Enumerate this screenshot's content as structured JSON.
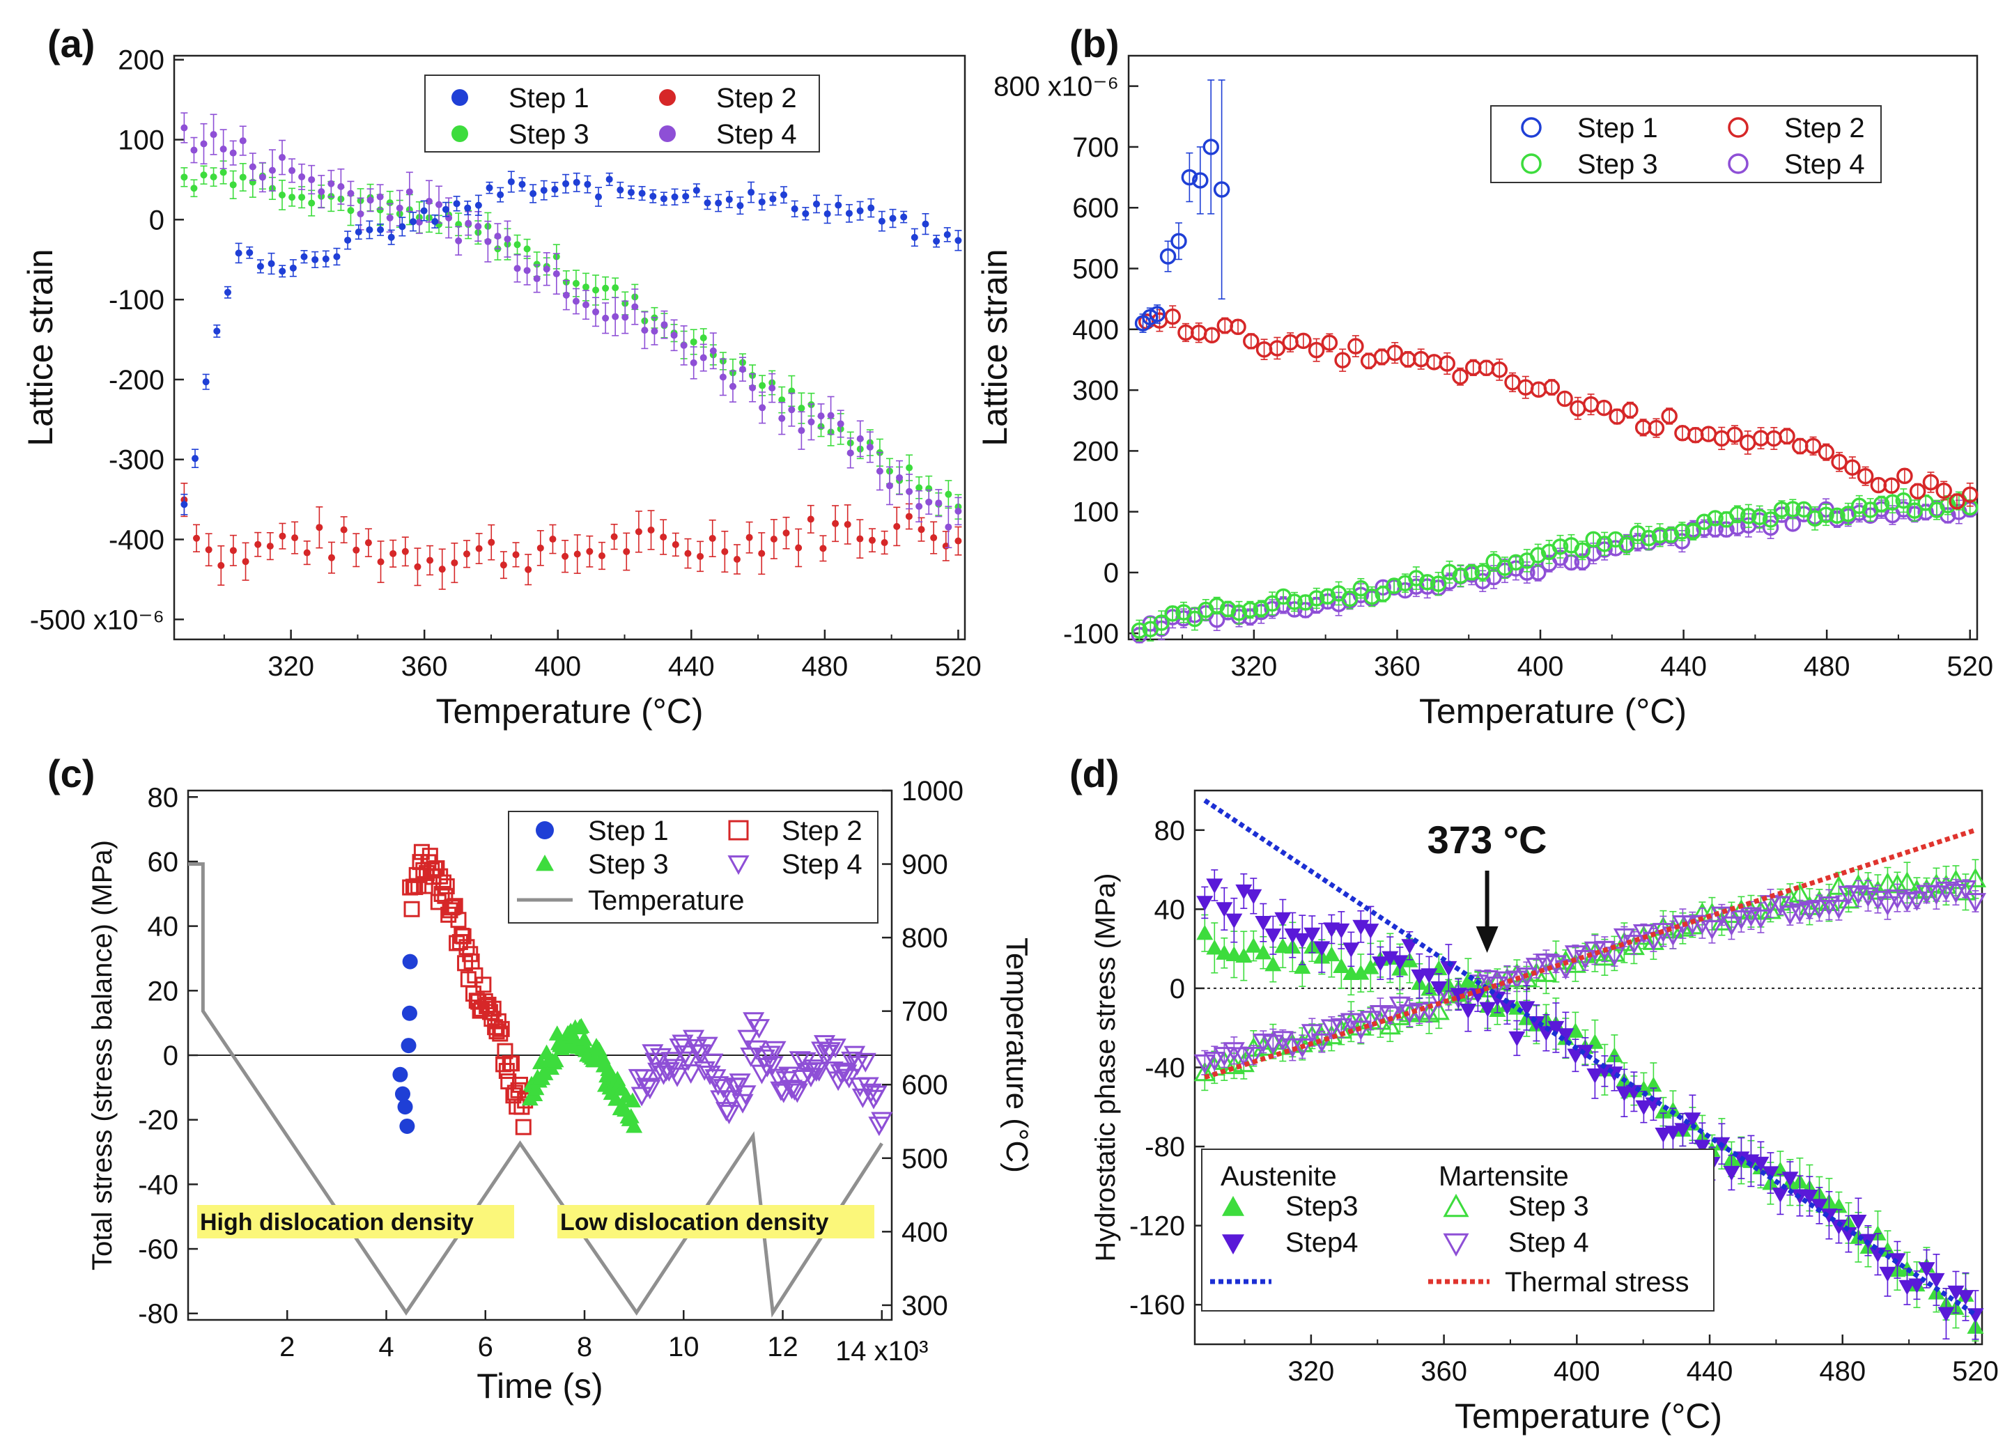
{
  "colors": {
    "blue": "#1f3fd6",
    "red": "#d62728",
    "green": "#3ddc3d",
    "purple": "#8e4fd6",
    "gray": "#8f8f8f",
    "highlight": "#fbf77a",
    "dark_purple": "#5a19d8",
    "dash_blue": "#1c2fd4",
    "dash_red": "#e0342e"
  },
  "chart_data": [
    {
      "panel": "(a)",
      "type": "scatter",
      "xlabel": "Temperature (°C)",
      "ylabel": "Lattice strain",
      "xlim": [
        285,
        522
      ],
      "ylim": [
        -525,
        205
      ],
      "xticks": [
        320,
        360,
        400,
        440,
        480,
        520
      ],
      "xtick_labels": [
        "320",
        "360",
        "400",
        "440",
        "480",
        "520"
      ],
      "yticks": [
        200,
        100,
        0,
        -100,
        -200,
        -300,
        -400,
        -500
      ],
      "ytick_labels": [
        "200",
        "100",
        "0",
        "-100",
        "-200",
        "-300",
        "-400",
        "-500 x10⁻⁶"
      ],
      "legend": [
        {
          "label": "Step 1",
          "color": "blue",
          "marker": "filled-circle"
        },
        {
          "label": "Step 2",
          "color": "red",
          "marker": "filled-circle"
        },
        {
          "label": "Step 3",
          "color": "green",
          "marker": "filled-circle"
        },
        {
          "label": "Step 4",
          "color": "purple",
          "marker": "filled-circle"
        }
      ],
      "series": [
        {
          "name": "Step 1",
          "color": "blue",
          "marker": "filled-circle",
          "error": 10,
          "x": [
            288,
            291,
            294,
            297,
            300,
            303,
            306,
            309,
            314,
            320,
            330,
            345,
            360,
            375,
            385,
            395,
            410,
            430,
            450,
            470,
            490,
            505,
            520
          ],
          "y": [
            -350,
            -300,
            -215,
            -165,
            -100,
            -50,
            -45,
            -45,
            -50,
            -55,
            -40,
            -20,
            0,
            20,
            40,
            35,
            40,
            35,
            30,
            20,
            10,
            -10,
            -30
          ]
        },
        {
          "name": "Step 2",
          "color": "red",
          "marker": "filled-circle",
          "error": 20,
          "x": [
            288,
            295,
            305,
            320,
            340,
            360,
            380,
            400,
            420,
            440,
            460,
            480,
            500,
            520
          ],
          "y": [
            -350,
            -410,
            -420,
            -400,
            -410,
            -420,
            -415,
            -420,
            -405,
            -410,
            -400,
            -390,
            -385,
            -390
          ]
        },
        {
          "name": "Step 3",
          "color": "green",
          "marker": "filled-circle",
          "error": 15,
          "x": [
            288,
            300,
            320,
            340,
            360,
            380,
            400,
            420,
            440,
            460,
            480,
            500,
            520
          ],
          "y": [
            45,
            60,
            40,
            20,
            0,
            -20,
            -60,
            -100,
            -150,
            -200,
            -250,
            -310,
            -360
          ]
        },
        {
          "name": "Step 4",
          "color": "purple",
          "marker": "filled-circle",
          "error": 20,
          "x": [
            288,
            300,
            320,
            340,
            360,
            380,
            400,
            420,
            440,
            460,
            480,
            500,
            520
          ],
          "y": [
            110,
            90,
            60,
            30,
            10,
            -20,
            -70,
            -120,
            -160,
            -210,
            -260,
            -320,
            -370
          ]
        }
      ]
    },
    {
      "panel": "(b)",
      "type": "scatter",
      "xlabel": "Temperature (°C)",
      "ylabel": "Lattice strain",
      "xlim": [
        285,
        522
      ],
      "ylim": [
        -110,
        850
      ],
      "xticks": [
        320,
        360,
        400,
        440,
        480,
        520
      ],
      "xtick_labels": [
        "320",
        "360",
        "400",
        "440",
        "480",
        "520"
      ],
      "yticks": [
        -100,
        0,
        100,
        200,
        300,
        400,
        500,
        600,
        700,
        800
      ],
      "ytick_labels": [
        "-100",
        "0",
        "100",
        "200",
        "300",
        "400",
        "500",
        "600",
        "700",
        "800 x10⁻⁶"
      ],
      "legend": [
        {
          "label": "Step 1",
          "color": "blue",
          "marker": "open-circle"
        },
        {
          "label": "Step 2",
          "color": "red",
          "marker": "open-circle"
        },
        {
          "label": "Step 3",
          "color": "green",
          "marker": "open-circle"
        },
        {
          "label": "Step 4",
          "color": "purple",
          "marker": "open-circle"
        }
      ],
      "series": [
        {
          "name": "Step 1",
          "color": "blue",
          "marker": "open-circle",
          "error": [
            15,
            15,
            15,
            25,
            30,
            40,
            55,
            110,
            180
          ],
          "x": [
            289,
            291,
            293,
            296,
            299,
            302,
            305,
            308,
            311
          ],
          "y": [
            410,
            420,
            425,
            520,
            545,
            650,
            645,
            700,
            630
          ]
        },
        {
          "name": "Step 2",
          "color": "red",
          "marker": "open-circle",
          "error": 15,
          "x": [
            290,
            310,
            330,
            350,
            370,
            390,
            410,
            430,
            450,
            470,
            490,
            510,
            520
          ],
          "y": [
            415,
            400,
            370,
            360,
            340,
            320,
            280,
            250,
            230,
            210,
            160,
            140,
            120
          ]
        },
        {
          "name": "Step 3",
          "color": "green",
          "marker": "open-circle",
          "error": 15,
          "x": [
            288,
            300,
            320,
            340,
            360,
            380,
            400,
            420,
            440,
            460,
            480,
            500,
            520
          ],
          "y": [
            -95,
            -70,
            -55,
            -40,
            -25,
            0,
            30,
            50,
            75,
            90,
            100,
            110,
            110
          ]
        },
        {
          "name": "Step 4",
          "color": "purple",
          "marker": "open-circle",
          "error": 15,
          "x": [
            288,
            300,
            320,
            340,
            360,
            380,
            400,
            420,
            440,
            460,
            480,
            500,
            520
          ],
          "y": [
            -95,
            -75,
            -65,
            -50,
            -30,
            -10,
            10,
            35,
            60,
            80,
            95,
            100,
            105
          ]
        }
      ]
    },
    {
      "panel": "(c)",
      "type": "scatter",
      "xlabel": "Time (s)",
      "ylabel": "Total stress (stress balance) (MPa)",
      "y2label": "Temperature (°C)",
      "xlim": [
        0,
        14200
      ],
      "ylim": [
        -82,
        82
      ],
      "y2lim": [
        280,
        1000
      ],
      "xticks": [
        2000,
        4000,
        6000,
        8000,
        10000,
        12000,
        14000
      ],
      "xtick_labels": [
        "2",
        "4",
        "6",
        "8",
        "10",
        "12",
        "14 x10³"
      ],
      "yticks": [
        -80,
        -60,
        -40,
        -20,
        0,
        20,
        40,
        60,
        80
      ],
      "ytick_labels": [
        "-80",
        "-60",
        "-40",
        "-20",
        "0",
        "20",
        "40",
        "60",
        "80"
      ],
      "y2ticks": [
        300,
        400,
        500,
        600,
        700,
        800,
        900,
        1000
      ],
      "y2tick_labels": [
        "300",
        "400",
        "500",
        "600",
        "700",
        "800",
        "900",
        "1000"
      ],
      "legend": [
        {
          "label": "Step 1",
          "color": "blue",
          "marker": "filled-circle"
        },
        {
          "label": "Step 2",
          "color": "red",
          "marker": "open-square"
        },
        {
          "label": "Step 3",
          "color": "green",
          "marker": "filled-triangle-up"
        },
        {
          "label": "Step 4",
          "color": "purple",
          "marker": "open-triangle-down"
        },
        {
          "label": "Temperature",
          "color": "gray",
          "marker": "line"
        }
      ],
      "series": [
        {
          "name": "Step 1",
          "color": "blue",
          "marker": "filled-circle",
          "x": [
            4280,
            4330,
            4380,
            4420,
            4450,
            4470,
            4480
          ],
          "y": [
            -6,
            -12,
            -16,
            -22,
            3,
            13,
            29
          ]
        },
        {
          "name": "Step 2",
          "color": "red",
          "marker": "open-square",
          "x": [
            4480,
            4700,
            5000,
            5300,
            5600,
            5900,
            6200,
            6500,
            6800
          ],
          "y": [
            50,
            58,
            55,
            45,
            32,
            18,
            8,
            -5,
            -18
          ]
        },
        {
          "name": "Step 3",
          "color": "green",
          "marker": "filled-triangle-up",
          "x": [
            6900,
            7200,
            7500,
            7800,
            8100,
            8400,
            8700,
            9000
          ],
          "y": [
            -12,
            -3,
            4,
            7,
            3,
            -5,
            -12,
            -18
          ]
        },
        {
          "name": "Step 4",
          "color": "purple",
          "marker": "open-triangle-down",
          "x": [
            9100,
            9600,
            10100,
            10600,
            11100,
            11400,
            11800,
            12300,
            12800,
            13300,
            13800,
            14000
          ],
          "y": [
            -8,
            -3,
            2,
            -5,
            -15,
            5,
            -3,
            -8,
            2,
            -5,
            -10,
            -18
          ]
        },
        {
          "name": "Temperature",
          "color": "gray",
          "marker": "line",
          "axis": "right",
          "x": [
            0,
            300,
            300,
            4400,
            6700,
            9050,
            11400,
            11800,
            14000
          ],
          "y": [
            900,
            900,
            700,
            290,
            520,
            290,
            530,
            290,
            520
          ]
        }
      ],
      "annotations": [
        {
          "text": "High dislocation density",
          "style": "highlight"
        },
        {
          "text": "Low dislocation density",
          "style": "highlight"
        }
      ]
    },
    {
      "panel": "(d)",
      "type": "scatter",
      "xlabel": "Temperature (°C)",
      "ylabel": "Hydrostatic phase stress (MPa)",
      "xlim": [
        285,
        522
      ],
      "ylim": [
        -180,
        100
      ],
      "xticks": [
        320,
        360,
        400,
        440,
        480,
        520
      ],
      "xtick_labels": [
        "320",
        "360",
        "400",
        "440",
        "480",
        "520"
      ],
      "yticks": [
        -160,
        -120,
        -80,
        -40,
        0,
        40,
        80
      ],
      "ytick_labels": [
        "-160",
        "-120",
        "-80",
        "-40",
        "0",
        "40",
        "80"
      ],
      "legend_headers": [
        "Austenite",
        "Martensite"
      ],
      "legend": [
        {
          "label": "Step3",
          "color": "green",
          "marker": "filled-triangle-up"
        },
        {
          "label": "Step 3",
          "color": "green",
          "marker": "open-triangle-up"
        },
        {
          "label": "Step4",
          "color": "dark_purple",
          "marker": "filled-triangle-down"
        },
        {
          "label": "Step 4",
          "color": "purple",
          "marker": "open-triangle-down"
        },
        {
          "label": "",
          "color": "dash_blue",
          "marker": "dotted-line"
        },
        {
          "label": "Thermal stress",
          "color": "dash_red",
          "marker": "dotted-line"
        }
      ],
      "annotation": {
        "text": "373 °C",
        "x": 373
      },
      "series": [
        {
          "name": "Austenite Step3",
          "color": "green",
          "marker": "filled-triangle-up",
          "x": [
            288,
            300,
            320,
            340,
            360,
            380,
            400,
            420,
            440,
            460,
            480,
            500,
            520
          ],
          "y": [
            25,
            20,
            15,
            10,
            5,
            -10,
            -25,
            -50,
            -75,
            -95,
            -115,
            -140,
            -165
          ]
        },
        {
          "name": "Austenite Step4",
          "color": "dark_purple",
          "marker": "filled-triangle-down",
          "x": [
            288,
            300,
            320,
            340,
            360,
            380,
            400,
            420,
            440,
            460,
            480,
            500,
            520
          ],
          "y": [
            50,
            40,
            30,
            20,
            5,
            -15,
            -30,
            -60,
            -80,
            -100,
            -120,
            -145,
            -165
          ]
        },
        {
          "name": "Martensite Step 3",
          "color": "green",
          "marker": "open-triangle-up",
          "x": [
            288,
            300,
            320,
            340,
            360,
            380,
            400,
            420,
            440,
            460,
            480,
            500,
            520
          ],
          "y": [
            -40,
            -35,
            -25,
            -18,
            -8,
            5,
            15,
            25,
            35,
            42,
            48,
            50,
            52
          ]
        },
        {
          "name": "Martensite Step 4",
          "color": "purple",
          "marker": "open-triangle-down",
          "x": [
            288,
            300,
            320,
            340,
            360,
            380,
            400,
            420,
            440,
            460,
            480,
            500,
            520
          ],
          "y": [
            -38,
            -32,
            -25,
            -15,
            -5,
            5,
            15,
            25,
            33,
            40,
            44,
            46,
            48
          ]
        },
        {
          "name": "Blue dotted",
          "color": "dash_blue",
          "marker": "dotted-line",
          "x": [
            288,
            373,
            520
          ],
          "y": [
            95,
            0,
            -165
          ]
        },
        {
          "name": "Thermal stress",
          "color": "dash_red",
          "marker": "dotted-line",
          "x": [
            288,
            373,
            520
          ],
          "y": [
            -45,
            0,
            80
          ]
        }
      ]
    }
  ]
}
